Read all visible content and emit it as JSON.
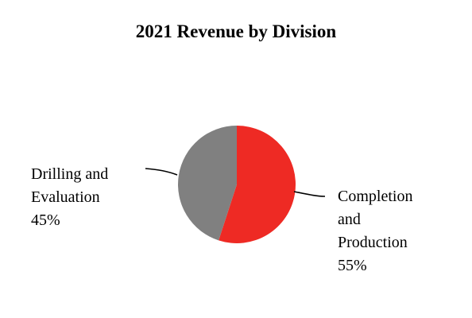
{
  "chart_data": {
    "type": "pie",
    "title": "2021 Revenue by Division",
    "slices": [
      {
        "label_lines": [
          "Completion",
          "and",
          "Production"
        ],
        "label": "Completion and Production",
        "value": 55,
        "value_label": "55%",
        "color": "#ee2a24"
      },
      {
        "label_lines": [
          "Drilling and",
          "Evaluation"
        ],
        "label": "Drilling and Evaluation",
        "value": 45,
        "value_label": "45%",
        "color": "#808080"
      }
    ],
    "start_angle_deg": 0,
    "direction": "clockwise",
    "legend": "none",
    "label_style": "outside with leader lines"
  }
}
